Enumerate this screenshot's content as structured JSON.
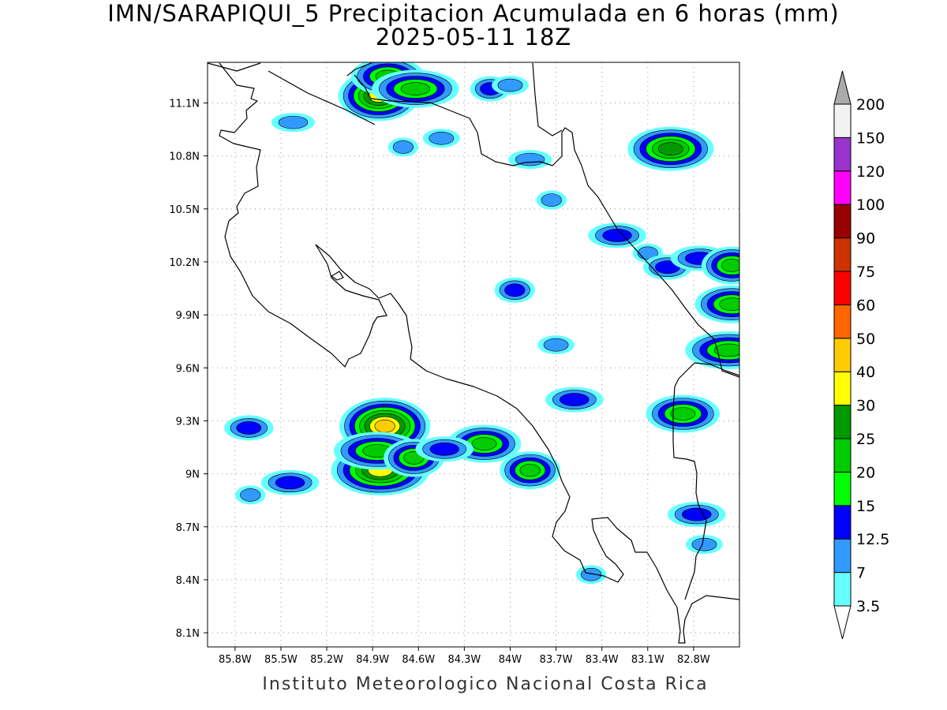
{
  "title": {
    "line1": "IMN/SARAPIQUI_5 Precipitacion Acumulada en 6 horas (mm)",
    "line2": "2025-05-11 18Z"
  },
  "footer": "Instituto Meteorologico Nacional Costa Rica",
  "map": {
    "lon_range": [
      -85.98,
      -82.5
    ],
    "lat_range": [
      8.02,
      11.33
    ],
    "x_ticks": [
      {
        "lon": -85.8,
        "label": "85.8W"
      },
      {
        "lon": -85.5,
        "label": "85.5W"
      },
      {
        "lon": -85.2,
        "label": "85.2W"
      },
      {
        "lon": -84.9,
        "label": "84.9W"
      },
      {
        "lon": -84.6,
        "label": "84.6W"
      },
      {
        "lon": -84.3,
        "label": "84.3W"
      },
      {
        "lon": -84.0,
        "label": "84W"
      },
      {
        "lon": -83.7,
        "label": "83.7W"
      },
      {
        "lon": -83.4,
        "label": "83.4W"
      },
      {
        "lon": -83.1,
        "label": "83.1W"
      },
      {
        "lon": -82.8,
        "label": "82.8W"
      }
    ],
    "y_ticks": [
      {
        "lat": 11.1,
        "label": "11.1N"
      },
      {
        "lat": 10.8,
        "label": "10.8N"
      },
      {
        "lat": 10.5,
        "label": "10.5N"
      },
      {
        "lat": 10.2,
        "label": "10.2N"
      },
      {
        "lat": 9.9,
        "label": "9.9N"
      },
      {
        "lat": 9.6,
        "label": "9.6N"
      },
      {
        "lat": 9.3,
        "label": "9.3N"
      },
      {
        "lat": 9.0,
        "label": "9N"
      },
      {
        "lat": 8.7,
        "label": "8.7N"
      },
      {
        "lat": 8.4,
        "label": "8.4N"
      },
      {
        "lat": 8.1,
        "label": "8.1N"
      }
    ],
    "grid": "dotted"
  },
  "legend": {
    "unit": "mm",
    "levels": [
      {
        "label": "3.5",
        "color": "#66ffff"
      },
      {
        "label": "7",
        "color": "#3399ff"
      },
      {
        "label": "12.5",
        "color": "#0000ff"
      },
      {
        "label": "15",
        "color": "#00ff00"
      },
      {
        "label": "20",
        "color": "#00cc00"
      },
      {
        "label": "25",
        "color": "#009900"
      },
      {
        "label": "30",
        "color": "#ffff00"
      },
      {
        "label": "40",
        "color": "#ffcc00"
      },
      {
        "label": "50",
        "color": "#ff6600"
      },
      {
        "label": "60",
        "color": "#ff0000"
      },
      {
        "label": "75",
        "color": "#cc3300"
      },
      {
        "label": "90",
        "color": "#990000"
      },
      {
        "label": "100",
        "color": "#ff00ff"
      },
      {
        "label": "120",
        "color": "#9933cc"
      },
      {
        "label": "150",
        "color": "#f2f2f2"
      },
      {
        "label": "200",
        "color": "#aaaaaa"
      }
    ]
  },
  "precip_cells": [
    {
      "lon": -84.86,
      "lat": 11.14,
      "value": 30
    },
    {
      "lon": -84.8,
      "lat": 11.25,
      "value": 20
    },
    {
      "lon": -84.62,
      "lat": 11.18,
      "value": 20
    },
    {
      "lon": -84.13,
      "lat": 11.18,
      "value": 12.5
    },
    {
      "lon": -84.0,
      "lat": 11.2,
      "value": 7
    },
    {
      "lon": -85.42,
      "lat": 10.99,
      "value": 7
    },
    {
      "lon": -84.7,
      "lat": 10.85,
      "value": 7
    },
    {
      "lon": -84.45,
      "lat": 10.9,
      "value": 7
    },
    {
      "lon": -83.87,
      "lat": 10.78,
      "value": 7
    },
    {
      "lon": -83.73,
      "lat": 10.55,
      "value": 7
    },
    {
      "lon": -82.95,
      "lat": 10.84,
      "value": 25
    },
    {
      "lon": -83.3,
      "lat": 10.35,
      "value": 12.5
    },
    {
      "lon": -83.1,
      "lat": 10.25,
      "value": 7
    },
    {
      "lon": -82.97,
      "lat": 10.17,
      "value": 12.5
    },
    {
      "lon": -82.76,
      "lat": 10.22,
      "value": 12.5
    },
    {
      "lon": -82.55,
      "lat": 10.18,
      "value": 20
    },
    {
      "lon": -82.55,
      "lat": 9.96,
      "value": 20
    },
    {
      "lon": -82.57,
      "lat": 9.7,
      "value": 20
    },
    {
      "lon": -83.97,
      "lat": 10.04,
      "value": 12.5
    },
    {
      "lon": -83.7,
      "lat": 9.73,
      "value": 7
    },
    {
      "lon": -83.58,
      "lat": 9.42,
      "value": 12.5
    },
    {
      "lon": -84.82,
      "lat": 9.27,
      "value": 40
    },
    {
      "lon": -84.85,
      "lat": 9.02,
      "value": 30
    },
    {
      "lon": -84.87,
      "lat": 9.13,
      "value": 20
    },
    {
      "lon": -84.63,
      "lat": 9.09,
      "value": 20
    },
    {
      "lon": -84.17,
      "lat": 9.17,
      "value": 20
    },
    {
      "lon": -84.43,
      "lat": 9.14,
      "value": 12.5
    },
    {
      "lon": -83.87,
      "lat": 9.02,
      "value": 20
    },
    {
      "lon": -85.71,
      "lat": 9.26,
      "value": 12.5
    },
    {
      "lon": -85.44,
      "lat": 8.95,
      "value": 12.5
    },
    {
      "lon": -85.7,
      "lat": 8.88,
      "value": 7
    },
    {
      "lon": -82.87,
      "lat": 9.34,
      "value": 20
    },
    {
      "lon": -82.78,
      "lat": 8.77,
      "value": 12.5
    },
    {
      "lon": -83.47,
      "lat": 8.43,
      "value": 7
    },
    {
      "lon": -82.73,
      "lat": 8.6,
      "value": 7
    }
  ]
}
